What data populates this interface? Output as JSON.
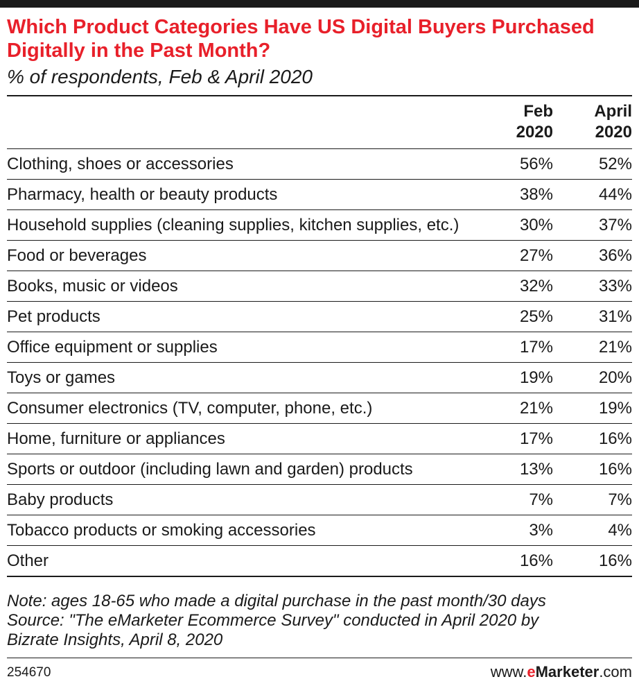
{
  "chart_data": {
    "type": "table",
    "title": "Which Product Categories Have US Digital Buyers Purchased Digitally in the Past Month?",
    "subtitle": "% of respondents, Feb & April 2020",
    "columns": [
      {
        "line1": "Feb",
        "line2": "2020"
      },
      {
        "line1": "April",
        "line2": "2020"
      }
    ],
    "rows": [
      {
        "label": "Clothing, shoes or accessories",
        "feb": "56%",
        "apr": "52%"
      },
      {
        "label": "Pharmacy, health or beauty products",
        "feb": "38%",
        "apr": "44%"
      },
      {
        "label": "Household supplies (cleaning supplies, kitchen supplies, etc.)",
        "feb": "30%",
        "apr": "37%"
      },
      {
        "label": "Food or beverages",
        "feb": "27%",
        "apr": "36%"
      },
      {
        "label": "Books, music or videos",
        "feb": "32%",
        "apr": "33%"
      },
      {
        "label": "Pet products",
        "feb": "25%",
        "apr": "31%"
      },
      {
        "label": "Office equipment or supplies",
        "feb": "17%",
        "apr": "21%"
      },
      {
        "label": "Toys or games",
        "feb": "19%",
        "apr": "20%"
      },
      {
        "label": "Consumer electronics (TV, computer, phone, etc.)",
        "feb": "21%",
        "apr": "19%"
      },
      {
        "label": "Home, furniture or appliances",
        "feb": "17%",
        "apr": "16%"
      },
      {
        "label": "Sports or outdoor (including lawn and garden) products",
        "feb": "13%",
        "apr": "16%"
      },
      {
        "label": "Baby products",
        "feb": "7%",
        "apr": "7%"
      },
      {
        "label": "Tobacco products or smoking accessories",
        "feb": "3%",
        "apr": "4%"
      },
      {
        "label": "Other",
        "feb": "16%",
        "apr": "16%"
      }
    ],
    "notes": [
      "Note: ages 18-65 who made a digital purchase in the past month/30 days",
      "Source: \"The eMarketer Ecommerce Survey\" conducted in April 2020 by",
      "Bizrate Insights, April 8, 2020"
    ]
  },
  "footer": {
    "chart_id": "254670",
    "brand_prefix": "www.",
    "brand_accent": "e",
    "brand_main": "Marketer",
    "brand_suffix": ".com"
  },
  "colors": {
    "accent": "#e8202a",
    "text": "#1a1a1a",
    "background": "#ffffff"
  }
}
